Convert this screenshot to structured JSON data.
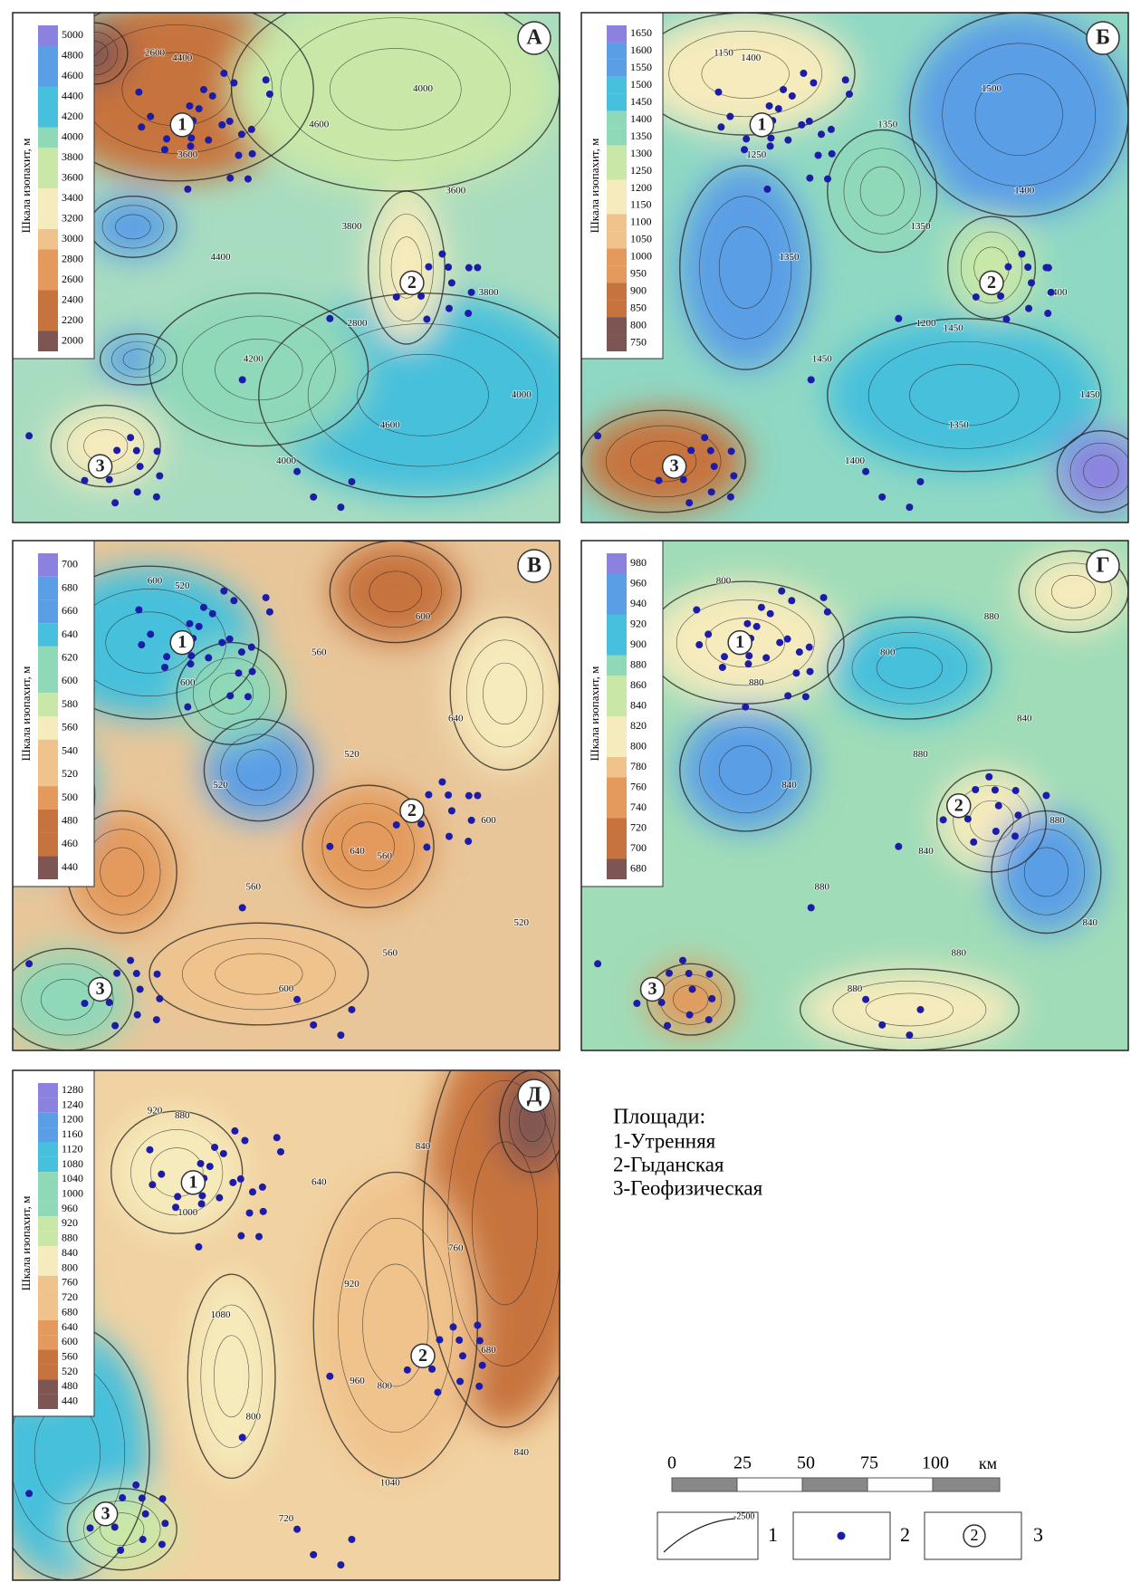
{
  "panels": [
    {
      "letter": "А",
      "scale_title": "Шкала изопахит, м",
      "scale_ticks": [
        5000,
        4800,
        4600,
        4400,
        4200,
        4000,
        3800,
        3600,
        3400,
        3200,
        3000,
        2800,
        2600,
        2400,
        2200,
        2000
      ],
      "areas": [
        "1",
        "2",
        "3"
      ],
      "contour_labels": [
        "2600",
        "2800",
        "3600",
        "4600",
        "4400",
        "4000",
        "4200",
        "3600",
        "4000",
        "3800",
        "4600",
        "4000",
        "3800",
        "4400"
      ]
    },
    {
      "letter": "Б",
      "scale_title": "Шкала изопахит, м",
      "scale_ticks": [
        1650,
        1600,
        1550,
        1500,
        1450,
        1400,
        1350,
        1300,
        1250,
        1200,
        1150,
        1100,
        1050,
        1000,
        950,
        900,
        850,
        800,
        750
      ],
      "areas": [
        "1",
        "2",
        "3"
      ],
      "contour_labels": [
        "1150",
        "1200",
        "1250",
        "1350",
        "1350",
        "1500",
        "1450",
        "1400",
        "1400",
        "1400",
        "1350",
        "1450",
        "1350",
        "1400",
        "1450"
      ]
    },
    {
      "letter": "В",
      "scale_title": "Шкала изопахит, м",
      "scale_ticks": [
        700,
        680,
        660,
        640,
        620,
        600,
        580,
        560,
        540,
        520,
        500,
        480,
        460,
        440
      ],
      "areas": [
        "1",
        "2",
        "3"
      ],
      "contour_labels": [
        "600",
        "640",
        "600",
        "560",
        "520",
        "600",
        "560",
        "640",
        "600",
        "600",
        "560",
        "520",
        "520",
        "520",
        "560"
      ]
    },
    {
      "letter": "Г",
      "scale_title": "Шкала изопахит, м",
      "scale_ticks": [
        980,
        960,
        940,
        920,
        900,
        880,
        860,
        840,
        820,
        800,
        780,
        760,
        740,
        720,
        700,
        680
      ],
      "areas": [
        "1",
        "2",
        "3"
      ],
      "contour_labels": [
        "800",
        "840",
        "880",
        "880",
        "840",
        "880",
        "880",
        "840",
        "880",
        "880",
        "800",
        "840",
        "880"
      ]
    },
    {
      "letter": "Д",
      "scale_title": "Шкала изопахит, м",
      "scale_ticks": [
        1280,
        1240,
        1200,
        1160,
        1120,
        1080,
        1040,
        1000,
        960,
        920,
        880,
        840,
        800,
        760,
        720,
        680,
        640,
        600,
        560,
        520,
        480,
        440
      ],
      "areas": [
        "1",
        "2",
        "3"
      ],
      "contour_labels": [
        "920",
        "960",
        "1000",
        "1040",
        "1080",
        "840",
        "800",
        "760",
        "720",
        "680",
        "640",
        "840",
        "920",
        "880",
        "800"
      ]
    }
  ],
  "legend": {
    "title": "Площади:",
    "items": [
      "1-Утренняя",
      "2-Гыданская",
      "3-Геофизическая"
    ]
  },
  "scale_bar": {
    "ticks": [
      "0",
      "25",
      "50",
      "75",
      "100"
    ],
    "unit": "км"
  },
  "symbols": {
    "isoline_sample": "-2500",
    "labels": [
      "1",
      "2",
      "3"
    ],
    "area_sample": "2"
  }
}
